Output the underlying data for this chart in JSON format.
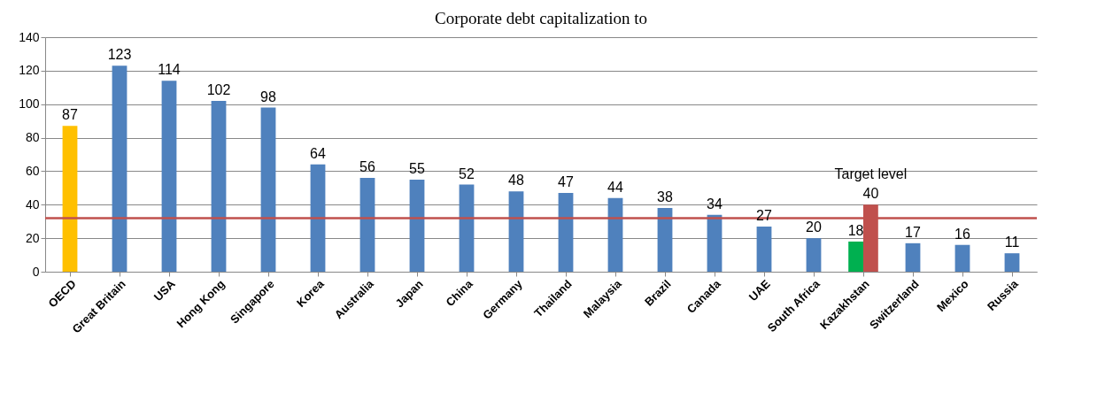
{
  "chart_data": {
    "type": "bar",
    "title": "Corporate debt capitalization to",
    "categories": [
      "OECD",
      "Great Britain",
      "USA",
      "Hong Kong",
      "Singapore",
      "Korea",
      "Australia",
      "Japan",
      "China",
      "Germany",
      "Thailand",
      "Malaysia",
      "Brazil",
      "Canada",
      "UAE",
      "South Africa",
      "Kazakhstan",
      "Switzerland",
      "Mexico",
      "Russia"
    ],
    "series": [
      {
        "colors": [
          "#ffc000",
          "#4f81bd",
          "#4f81bd",
          "#4f81bd",
          "#4f81bd",
          "#4f81bd",
          "#4f81bd",
          "#4f81bd",
          "#4f81bd",
          "#4f81bd",
          "#4f81bd",
          "#4f81bd",
          "#4f81bd",
          "#4f81bd",
          "#4f81bd",
          "#4f81bd",
          "#00b050",
          "#4f81bd",
          "#4f81bd",
          "#4f81bd"
        ],
        "values": [
          87,
          123,
          114,
          102,
          98,
          64,
          56,
          55,
          52,
          48,
          47,
          44,
          38,
          34,
          27,
          20,
          18,
          17,
          16,
          11
        ]
      },
      {
        "name": "Target level",
        "color": "#c0504d",
        "values": [
          null,
          null,
          null,
          null,
          null,
          null,
          null,
          null,
          null,
          null,
          null,
          null,
          null,
          null,
          null,
          null,
          40,
          null,
          null,
          null
        ]
      }
    ],
    "ylim": [
      0,
      140
    ],
    "yticks": [
      0,
      20,
      40,
      60,
      80,
      100,
      120,
      140
    ],
    "grid": "y",
    "legend": false,
    "data_labels": true,
    "ref_lines": [
      {
        "axis": "y",
        "value": 32,
        "color": "#c0504d"
      }
    ]
  }
}
